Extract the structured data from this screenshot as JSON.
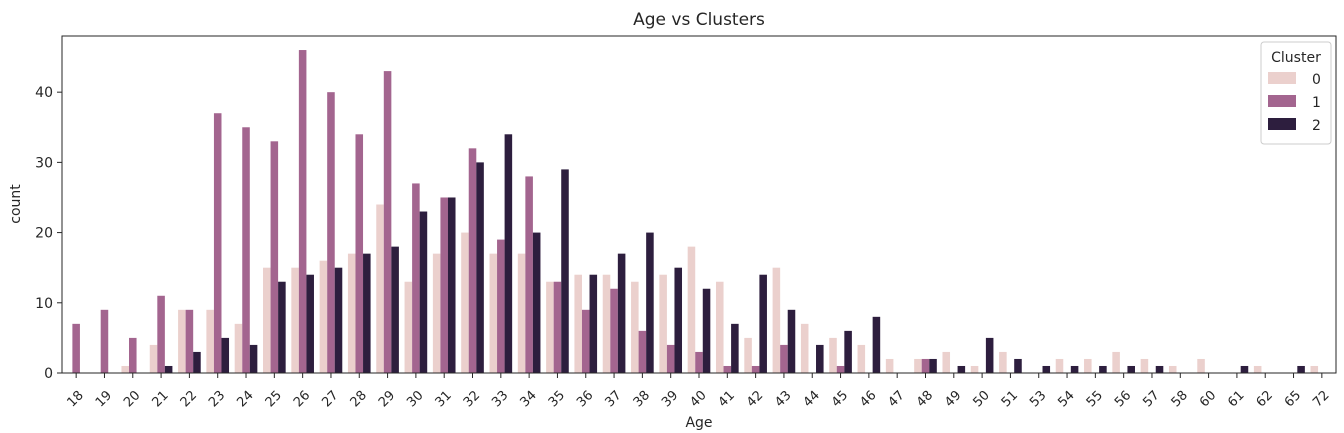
{
  "chart_data": {
    "type": "bar",
    "title": "Age vs Clusters",
    "xlabel": "Age",
    "ylabel": "count",
    "ylim": [
      0,
      48
    ],
    "yticks": [
      0,
      10,
      20,
      30,
      40
    ],
    "grid": false,
    "legend": {
      "title": "Cluster",
      "placement": "top-right"
    },
    "categories": [
      "18",
      "19",
      "20",
      "21",
      "22",
      "23",
      "24",
      "25",
      "26",
      "27",
      "28",
      "29",
      "30",
      "31",
      "32",
      "33",
      "34",
      "35",
      "36",
      "37",
      "38",
      "39",
      "40",
      "41",
      "42",
      "43",
      "44",
      "45",
      "46",
      "47",
      "48",
      "49",
      "50",
      "51",
      "53",
      "54",
      "55",
      "56",
      "57",
      "58",
      "60",
      "61",
      "62",
      "65",
      "72"
    ],
    "series": [
      {
        "name": "0",
        "color": "#ebd0cd",
        "values": [
          0,
          0,
          1,
          4,
          9,
          9,
          7,
          15,
          15,
          16,
          17,
          24,
          13,
          17,
          20,
          17,
          17,
          13,
          14,
          14,
          13,
          14,
          18,
          13,
          5,
          15,
          7,
          5,
          4,
          2,
          2,
          3,
          1,
          3,
          0,
          2,
          2,
          3,
          2,
          1,
          2,
          0,
          1,
          0,
          1
        ]
      },
      {
        "name": "1",
        "color": "#a3658f",
        "values": [
          7,
          9,
          5,
          11,
          9,
          37,
          35,
          33,
          46,
          40,
          34,
          43,
          27,
          25,
          32,
          19,
          28,
          13,
          9,
          12,
          6,
          4,
          3,
          1,
          1,
          4,
          0,
          1,
          0,
          0,
          2,
          0,
          0,
          0,
          0,
          0,
          0,
          0,
          0,
          0,
          0,
          0,
          0,
          0,
          0
        ]
      },
      {
        "name": "2",
        "color": "#2d1e3e",
        "values": [
          0,
          0,
          0,
          1,
          3,
          5,
          4,
          13,
          14,
          15,
          17,
          18,
          23,
          25,
          30,
          34,
          20,
          29,
          14,
          17,
          20,
          15,
          12,
          7,
          14,
          9,
          4,
          6,
          8,
          0,
          2,
          1,
          5,
          2,
          1,
          1,
          1,
          1,
          1,
          0,
          0,
          1,
          0,
          1,
          0
        ]
      }
    ]
  }
}
